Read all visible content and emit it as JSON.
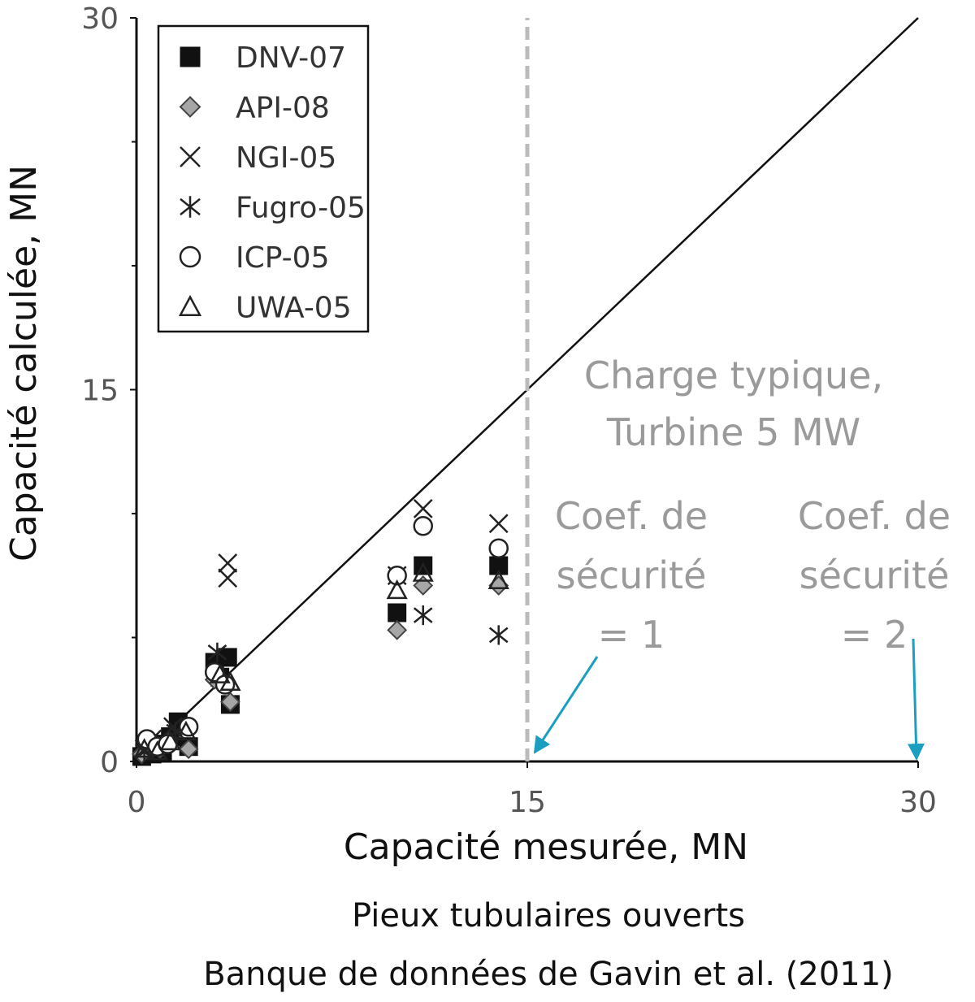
{
  "chart_data": {
    "type": "scatter",
    "xlabel": "Capacité mesurée, MN",
    "ylabel": "Capacité calculée, MN",
    "xlim": [
      0,
      30
    ],
    "ylim": [
      0,
      30
    ],
    "xticks": [
      "0",
      "15",
      "30"
    ],
    "yticks": [
      "0",
      "15",
      "30"
    ],
    "grid": false,
    "legend_position": "top-left",
    "reference_line": {
      "from": [
        0,
        0
      ],
      "to": [
        30,
        30
      ]
    },
    "vertical_reference": {
      "x": 15,
      "style": "dashed",
      "color": "#bbbbbb"
    },
    "series": [
      {
        "name": "DNV-07",
        "marker": "filled-square",
        "x": [
          0.2,
          0.4,
          0.6,
          0.8,
          1.0,
          1.3,
          1.6,
          2.0,
          3.0,
          3.2,
          3.5,
          3.6,
          10.0,
          11.0,
          13.9
        ],
        "y": [
          0.2,
          0.5,
          0.3,
          0.7,
          0.4,
          1.0,
          1.6,
          0.6,
          4.0,
          3.4,
          4.2,
          2.3,
          6.0,
          7.9,
          7.9
        ]
      },
      {
        "name": "API-08",
        "marker": "gray-diamond",
        "x": [
          0.2,
          0.5,
          0.9,
          1.2,
          2.0,
          3.0,
          3.6,
          10.0,
          11.0,
          13.9
        ],
        "y": [
          0.3,
          0.6,
          0.5,
          0.8,
          0.5,
          3.3,
          2.4,
          5.3,
          7.1,
          7.1
        ]
      },
      {
        "name": "NGI-05",
        "marker": "x",
        "x": [
          0.3,
          0.6,
          1.4,
          3.5,
          3.5,
          10.0,
          11.0,
          13.9
        ],
        "y": [
          0.5,
          0.9,
          1.4,
          8.0,
          7.4,
          7.5,
          10.2,
          9.6
        ]
      },
      {
        "name": "Fugro-05",
        "marker": "asterisk",
        "x": [
          0.3,
          0.7,
          1.5,
          3.1,
          11.0,
          13.9
        ],
        "y": [
          0.4,
          0.6,
          1.2,
          4.4,
          5.9,
          5.1
        ]
      },
      {
        "name": "ICP-05",
        "marker": "open-circle",
        "x": [
          0.4,
          0.8,
          1.2,
          2.0,
          3.0,
          3.4,
          10.0,
          11.0,
          13.9
        ],
        "y": [
          0.9,
          0.6,
          0.7,
          1.4,
          3.6,
          3.1,
          7.5,
          9.5,
          8.6
        ]
      },
      {
        "name": "UWA-05",
        "marker": "open-triangle",
        "x": [
          0.3,
          0.8,
          1.3,
          1.9,
          3.2,
          3.6,
          10.0,
          11.0,
          13.9
        ],
        "y": [
          0.5,
          0.4,
          0.8,
          1.2,
          3.5,
          3.2,
          6.9,
          7.6,
          7.3
        ]
      }
    ],
    "annotations": {
      "typical_load": [
        "Charge typique,",
        "Turbine 5 MW"
      ],
      "safety_factor_1": [
        "Coef. de",
        "sécurité",
        "= 1"
      ],
      "safety_factor_2": [
        "Coef. de",
        "sécurité",
        "= 2"
      ],
      "arrow_color": "#1a9fc0"
    },
    "caption": [
      "Pieux tubulaires ouverts",
      "Banque de données de Gavin et al. (2011)"
    ]
  }
}
